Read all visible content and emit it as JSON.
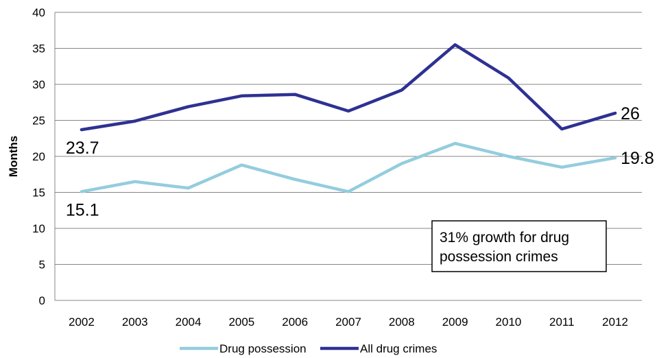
{
  "chart_data": {
    "type": "line",
    "title": "",
    "xlabel": "",
    "ylabel": "Months",
    "categories": [
      "2002",
      "2003",
      "2004",
      "2005",
      "2006",
      "2007",
      "2008",
      "2009",
      "2010",
      "2011",
      "2012"
    ],
    "ylim": [
      0,
      40
    ],
    "yticks": [
      0,
      5,
      10,
      15,
      20,
      25,
      30,
      35,
      40
    ],
    "grid": true,
    "legend_position": "bottom",
    "series": [
      {
        "name": "Drug possession",
        "color": "#93cddd",
        "values": [
          15.1,
          16.5,
          15.6,
          18.8,
          16.8,
          15.1,
          19.0,
          21.8,
          20.0,
          18.5,
          19.8
        ]
      },
      {
        "name": "All drug crimes",
        "color": "#2e3192",
        "values": [
          23.7,
          24.9,
          26.9,
          28.4,
          28.6,
          26.3,
          29.2,
          35.5,
          30.9,
          23.8,
          26.0
        ]
      }
    ],
    "data_labels": [
      {
        "series": 1,
        "index": 0,
        "text": "23.7"
      },
      {
        "series": 1,
        "index": 10,
        "text": "26"
      },
      {
        "series": 0,
        "index": 0,
        "text": "15.1"
      },
      {
        "series": 0,
        "index": 10,
        "text": "19.8"
      }
    ],
    "annotation": {
      "lines": [
        "31% growth for drug",
        "possession crimes"
      ]
    }
  }
}
